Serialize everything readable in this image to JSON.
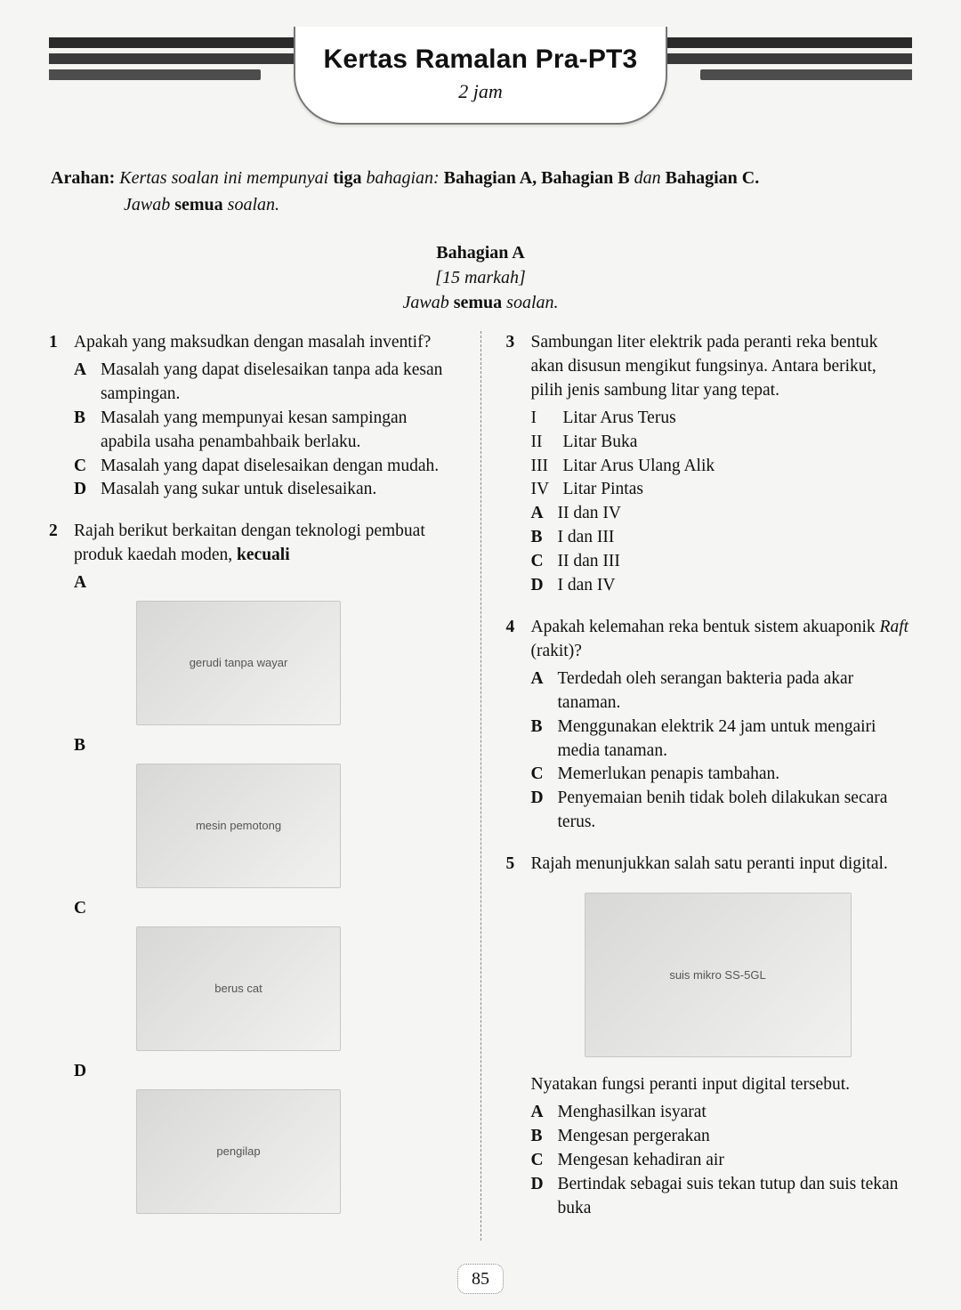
{
  "banner": {
    "title": "Kertas Ramalan Pra-PT3",
    "subtitle": "2 jam",
    "stripe_colors": [
      "#2a2a2a",
      "#3a3a3a",
      "#4d4d4d"
    ],
    "stripe_widths_pct": [
      100,
      86,
      72
    ],
    "plaque_bg": "#ffffff",
    "plaque_border": "#777777"
  },
  "arahan": {
    "label": "Arahan:",
    "line1_a": "Kertas soalan ini mempunyai ",
    "line1_b": "tiga",
    "line1_c": " bahagian: ",
    "line1_d": "Bahagian A, Bahagian B",
    "line1_e": " dan ",
    "line1_f": "Bahagian C.",
    "line2_a": "Jawab ",
    "line2_b": "semua",
    "line2_c": " soalan."
  },
  "section": {
    "name": "Bahagian A",
    "marks": "[15 markah]",
    "instr_a": "Jawab ",
    "instr_b": "semua",
    "instr_c": " soalan."
  },
  "q1": {
    "num": "1",
    "text": "Apakah yang maksudkan dengan masalah inventif?",
    "opts": {
      "A": "Masalah yang dapat diselesaikan tanpa ada kesan sampingan.",
      "B": "Masalah yang mempunyai kesan sampingan apabila usaha penambahbaik berlaku.",
      "C": "Masalah yang dapat diselesaikan dengan mudah.",
      "D": "Masalah yang sukar untuk diselesaikan."
    }
  },
  "q2": {
    "num": "2",
    "text_a": "Rajah berikut berkaitan dengan teknologi pembuat produk kaedah moden, ",
    "text_b": "kecuali",
    "labels": {
      "A": "A",
      "B": "B",
      "C": "C",
      "D": "D"
    },
    "images": {
      "A": "gerudi tanpa wayar",
      "B": "mesin pemotong",
      "C": "berus cat",
      "D": "pengilap"
    }
  },
  "q3": {
    "num": "3",
    "text": "Sambungan liter elektrik pada peranti reka bentuk akan disusun mengikut fungsinya. Antara berikut, pilih jenis sambung litar yang tepat.",
    "roman": {
      "I": "Litar Arus Terus",
      "II": "Litar Buka",
      "III": "Litar Arus Ulang Alik",
      "IV": "Litar Pintas"
    },
    "opts": {
      "A": "II dan IV",
      "B": "I dan III",
      "C": "II dan III",
      "D": "I dan IV"
    }
  },
  "q4": {
    "num": "4",
    "text_a": "Apakah kelemahan reka bentuk sistem akuaponik ",
    "text_b": "Raft",
    "text_c": " (rakit)?",
    "opts": {
      "A": "Terdedah oleh serangan bakteria pada akar tanaman.",
      "B": "Menggunakan elektrik 24 jam untuk mengairi media tanaman.",
      "C": "Memerlukan penapis tambahan.",
      "D": "Penyemaian benih tidak boleh dilakukan secara terus."
    }
  },
  "q5": {
    "num": "5",
    "text": "Rajah menunjukkan salah satu peranti input digital.",
    "image": "suis mikro SS-5GL",
    "after": "Nyatakan fungsi peranti input digital tersebut.",
    "opts": {
      "A": "Menghasilkan isyarat",
      "B": "Mengesan pergerakan",
      "C": "Mengesan kehadiran air",
      "D": "Bertindak sebagai suis tekan tutup dan suis tekan buka"
    }
  },
  "page_number": "85",
  "colors": {
    "page_bg": "#f5f5f3",
    "text": "#111111",
    "divider": "#888888",
    "placeholder_bg_from": "#d8d8d6",
    "placeholder_bg_to": "#f1f1ef"
  },
  "typography": {
    "body_font": "Georgia / Times New Roman",
    "body_size_pt": 15,
    "title_font": "Segoe UI / Arial",
    "title_size_pt": 22
  }
}
